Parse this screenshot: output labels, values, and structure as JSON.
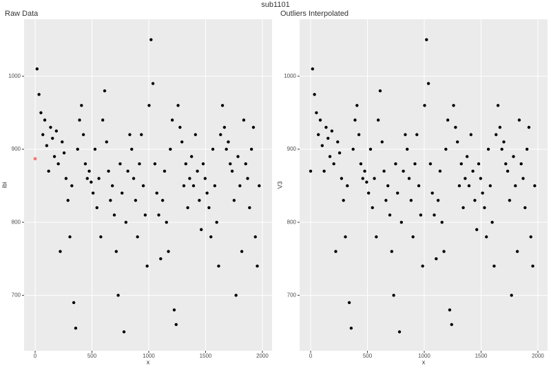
{
  "title": "sub1101",
  "chart_data": [
    {
      "type": "scatter",
      "title": "Raw Data",
      "x_label": "x",
      "y_label": "ibi",
      "color": "#000000",
      "xlim": [
        -97,
        2085
      ],
      "ylim": [
        624,
        1078
      ],
      "xticks": [
        0,
        500,
        1000,
        1500,
        2000
      ],
      "yticks": [
        700,
        800,
        900,
        1000
      ],
      "grid": true,
      "highlight": {
        "x": 0,
        "y": 887,
        "color": "#f8766d"
      },
      "x": [
        17,
        34,
        51,
        68,
        85,
        102,
        119,
        136,
        153,
        170,
        187,
        204,
        221,
        238,
        255,
        272,
        289,
        306,
        323,
        340,
        357,
        374,
        391,
        408,
        425,
        442,
        459,
        476,
        493,
        510,
        527,
        544,
        561,
        578,
        595,
        612,
        629,
        646,
        663,
        680,
        697,
        714,
        731,
        748,
        765,
        782,
        799,
        816,
        833,
        850,
        867,
        884,
        901,
        918,
        935,
        952,
        969,
        986,
        1003,
        1020,
        1037,
        1054,
        1071,
        1088,
        1105,
        1122,
        1139,
        1156,
        1173,
        1190,
        1207,
        1224,
        1241,
        1258,
        1275,
        1292,
        1309,
        1326,
        1343,
        1360,
        1377,
        1394,
        1411,
        1428,
        1445,
        1462,
        1479,
        1496,
        1513,
        1530,
        1547,
        1564,
        1581,
        1598,
        1615,
        1632,
        1649,
        1666,
        1683,
        1700,
        1717,
        1734,
        1751,
        1768,
        1785,
        1802,
        1819,
        1836,
        1853,
        1870,
        1887,
        1904,
        1921,
        1938,
        1955,
        1972
      ],
      "y": [
        1010,
        975,
        950,
        920,
        940,
        905,
        870,
        930,
        915,
        890,
        925,
        880,
        760,
        910,
        895,
        860,
        830,
        780,
        850,
        690,
        655,
        900,
        940,
        960,
        920,
        880,
        860,
        870,
        855,
        840,
        900,
        820,
        860,
        780,
        940,
        980,
        910,
        870,
        830,
        850,
        810,
        760,
        700,
        880,
        840,
        650,
        800,
        870,
        920,
        900,
        860,
        830,
        780,
        880,
        920,
        850,
        810,
        740,
        960,
        1050,
        990,
        880,
        840,
        810,
        750,
        830,
        870,
        800,
        760,
        900,
        940,
        680,
        660,
        960,
        930,
        910,
        850,
        880,
        820,
        860,
        890,
        850,
        920,
        870,
        830,
        790,
        880,
        860,
        840,
        820,
        780,
        900,
        850,
        800,
        740,
        920,
        960,
        930,
        900,
        910,
        880,
        870,
        830,
        700,
        890,
        850,
        760,
        940,
        880,
        860,
        820,
        900,
        930,
        780,
        740,
        850
      ]
    },
    {
      "type": "scatter",
      "title": "Outliers Interpolated",
      "x_label": "x",
      "y_label": "V3",
      "color": "#000000",
      "xlim": [
        -97,
        2085
      ],
      "ylim": [
        624,
        1078
      ],
      "xticks": [
        0,
        500,
        1000,
        1500,
        2000
      ],
      "yticks": [
        700,
        800,
        900,
        1000
      ],
      "grid": true,
      "x": [
        0,
        17,
        34,
        51,
        68,
        85,
        102,
        119,
        136,
        153,
        170,
        187,
        204,
        221,
        238,
        255,
        272,
        289,
        306,
        323,
        340,
        357,
        374,
        391,
        408,
        425,
        442,
        459,
        476,
        493,
        510,
        527,
        544,
        561,
        578,
        595,
        612,
        629,
        646,
        663,
        680,
        697,
        714,
        731,
        748,
        765,
        782,
        799,
        816,
        833,
        850,
        867,
        884,
        901,
        918,
        935,
        952,
        969,
        986,
        1003,
        1020,
        1037,
        1054,
        1071,
        1088,
        1105,
        1122,
        1139,
        1156,
        1173,
        1190,
        1207,
        1224,
        1241,
        1258,
        1275,
        1292,
        1309,
        1326,
        1343,
        1360,
        1377,
        1394,
        1411,
        1428,
        1445,
        1462,
        1479,
        1496,
        1513,
        1530,
        1547,
        1564,
        1581,
        1598,
        1615,
        1632,
        1649,
        1666,
        1683,
        1700,
        1717,
        1734,
        1751,
        1768,
        1785,
        1802,
        1819,
        1836,
        1853,
        1870,
        1887,
        1904,
        1921,
        1938,
        1955,
        1972
      ],
      "y": [
        870,
        1010,
        975,
        950,
        920,
        940,
        905,
        870,
        930,
        915,
        890,
        925,
        880,
        760,
        910,
        895,
        860,
        830,
        780,
        850,
        690,
        655,
        900,
        940,
        960,
        920,
        880,
        860,
        870,
        855,
        840,
        900,
        820,
        860,
        780,
        940,
        980,
        910,
        870,
        830,
        850,
        810,
        760,
        700,
        880,
        840,
        650,
        800,
        870,
        920,
        900,
        860,
        830,
        780,
        880,
        920,
        850,
        810,
        740,
        960,
        1050,
        990,
        880,
        840,
        810,
        750,
        830,
        870,
        800,
        760,
        900,
        940,
        680,
        660,
        960,
        930,
        910,
        850,
        880,
        820,
        860,
        890,
        850,
        920,
        870,
        830,
        790,
        880,
        860,
        840,
        820,
        780,
        900,
        850,
        800,
        740,
        920,
        960,
        930,
        900,
        910,
        880,
        870,
        830,
        700,
        890,
        850,
        760,
        940,
        880,
        860,
        820,
        900,
        930,
        780,
        740,
        850
      ]
    }
  ]
}
